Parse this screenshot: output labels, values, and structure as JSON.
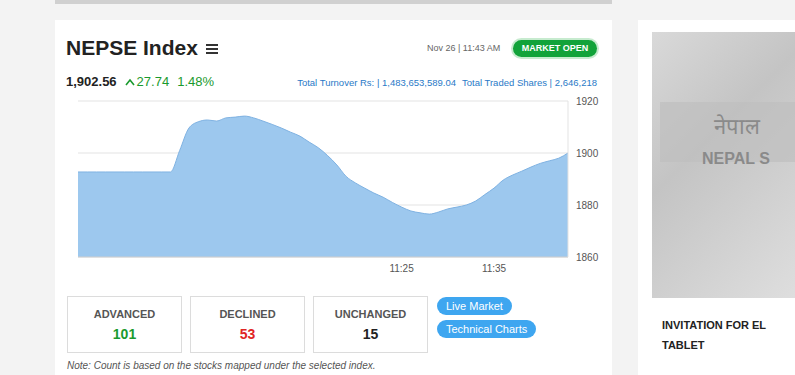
{
  "header": {
    "title": "NEPSE Index",
    "date": "Nov 26 | 11:43 AM",
    "status": "MARKET OPEN",
    "index_value": "1,902.56",
    "change": "27.74",
    "change_percent": "1.48%",
    "turnover": "Total Turnover Rs: | 1,483,653,589.04",
    "traded_shares": "Total Traded Shares | 2,646,218"
  },
  "chart_data": {
    "type": "area",
    "categories": [
      null,
      null,
      null,
      null,
      null,
      null,
      null,
      null,
      null,
      null,
      null,
      null,
      null,
      null,
      null,
      null,
      null,
      null,
      null,
      null,
      null,
      null,
      null,
      null,
      null,
      null,
      null,
      null,
      null,
      null,
      null,
      null,
      null,
      null,
      null,
      "11:25",
      null,
      null,
      null,
      null,
      null,
      null,
      null,
      null,
      null,
      "11:35",
      null,
      null,
      null,
      null,
      null,
      null,
      null,
      null
    ],
    "values": [
      1892.7,
      1892.7,
      1892.7,
      1892.7,
      1892.7,
      1892.7,
      1892.7,
      1892.7,
      1892.7,
      1892.7,
      1892.7,
      1901,
      1909.6,
      1912,
      1912.7,
      1912.3,
      1913.5,
      1913.8,
      1914.2,
      1913.5,
      1912.3,
      1911,
      1909.6,
      1908,
      1906.5,
      1904.2,
      1902,
      1899,
      1895.4,
      1891,
      1888.5,
      1886.5,
      1884.6,
      1883,
      1881,
      1879.2,
      1877.7,
      1877,
      1876.5,
      1877.3,
      1878.5,
      1879.2,
      1880,
      1881.5,
      1884,
      1886.5,
      1889.6,
      1891.5,
      1893,
      1894.6,
      1896,
      1897,
      1898,
      1900
    ],
    "color": "#9dc8ee",
    "ylim": [
      1860,
      1920
    ],
    "yticks": [
      1860,
      1880,
      1900,
      1920
    ],
    "grid": true
  },
  "breadth": [
    {
      "label": "ADVANCED",
      "value": "101",
      "color": "#1a9a2e"
    },
    {
      "label": "DECLINED",
      "value": "53",
      "color": "#e02424"
    },
    {
      "label": "UNCHANGED",
      "value": "15",
      "color": "#222222"
    }
  ],
  "buttons": [
    "Live Market",
    "Technical Charts"
  ],
  "note": "Note: Count is based on the stocks mapped under the selected index.",
  "sidebar": {
    "photo_text": [
      "नेपाल",
      "NEPAL S"
    ],
    "headline": [
      "INVITATION FOR EL",
      "TABLET"
    ]
  }
}
